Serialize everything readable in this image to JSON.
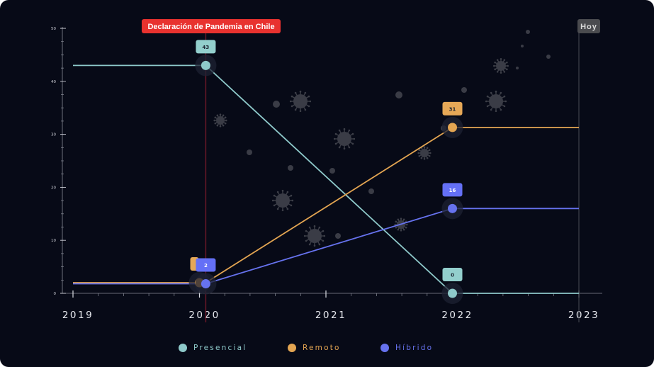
{
  "chart_data": {
    "type": "line",
    "x_labels": [
      "2019",
      "2020",
      "2021",
      "2022",
      "2023"
    ],
    "y_ticks": [
      "0",
      "10",
      "20",
      "30",
      "40",
      "50"
    ],
    "ylim": [
      0,
      50
    ],
    "annotations": {
      "pandemic": "Declaración de Pandemia en Chile",
      "today": "Hoy"
    },
    "series": [
      {
        "name": "Presencial",
        "color": "#8ec9ca",
        "label_bg": "#93cfcd",
        "points": [
          [
            2019,
            43
          ],
          [
            2020.05,
            43
          ],
          [
            2022,
            0
          ],
          [
            2023,
            0
          ]
        ],
        "markers": [
          {
            "x": 2020.05,
            "y": 43,
            "label": "43"
          },
          {
            "x": 2022,
            "y": 0,
            "label": "0"
          }
        ]
      },
      {
        "name": "Remoto",
        "color": "#e3a552",
        "label_bg": "#e6a857",
        "points": [
          [
            2019,
            2
          ],
          [
            2020.05,
            2
          ],
          [
            2022,
            31.3
          ],
          [
            2023,
            31.3
          ]
        ],
        "markers": [
          {
            "x": 2020,
            "y": 2,
            "label": ""
          },
          {
            "x": 2022,
            "y": 31.3,
            "label": "31"
          }
        ]
      },
      {
        "name": "Híbrido",
        "color": "#6672ee",
        "label_bg": "#6470f6",
        "points": [
          [
            2019,
            1.8
          ],
          [
            2020.05,
            1.8
          ],
          [
            2022,
            16
          ],
          [
            2023,
            16
          ]
        ],
        "markers": [
          {
            "x": 2020.05,
            "y": 1.8,
            "label": "2"
          },
          {
            "x": 2022,
            "y": 16,
            "label": "16"
          }
        ]
      }
    ]
  }
}
